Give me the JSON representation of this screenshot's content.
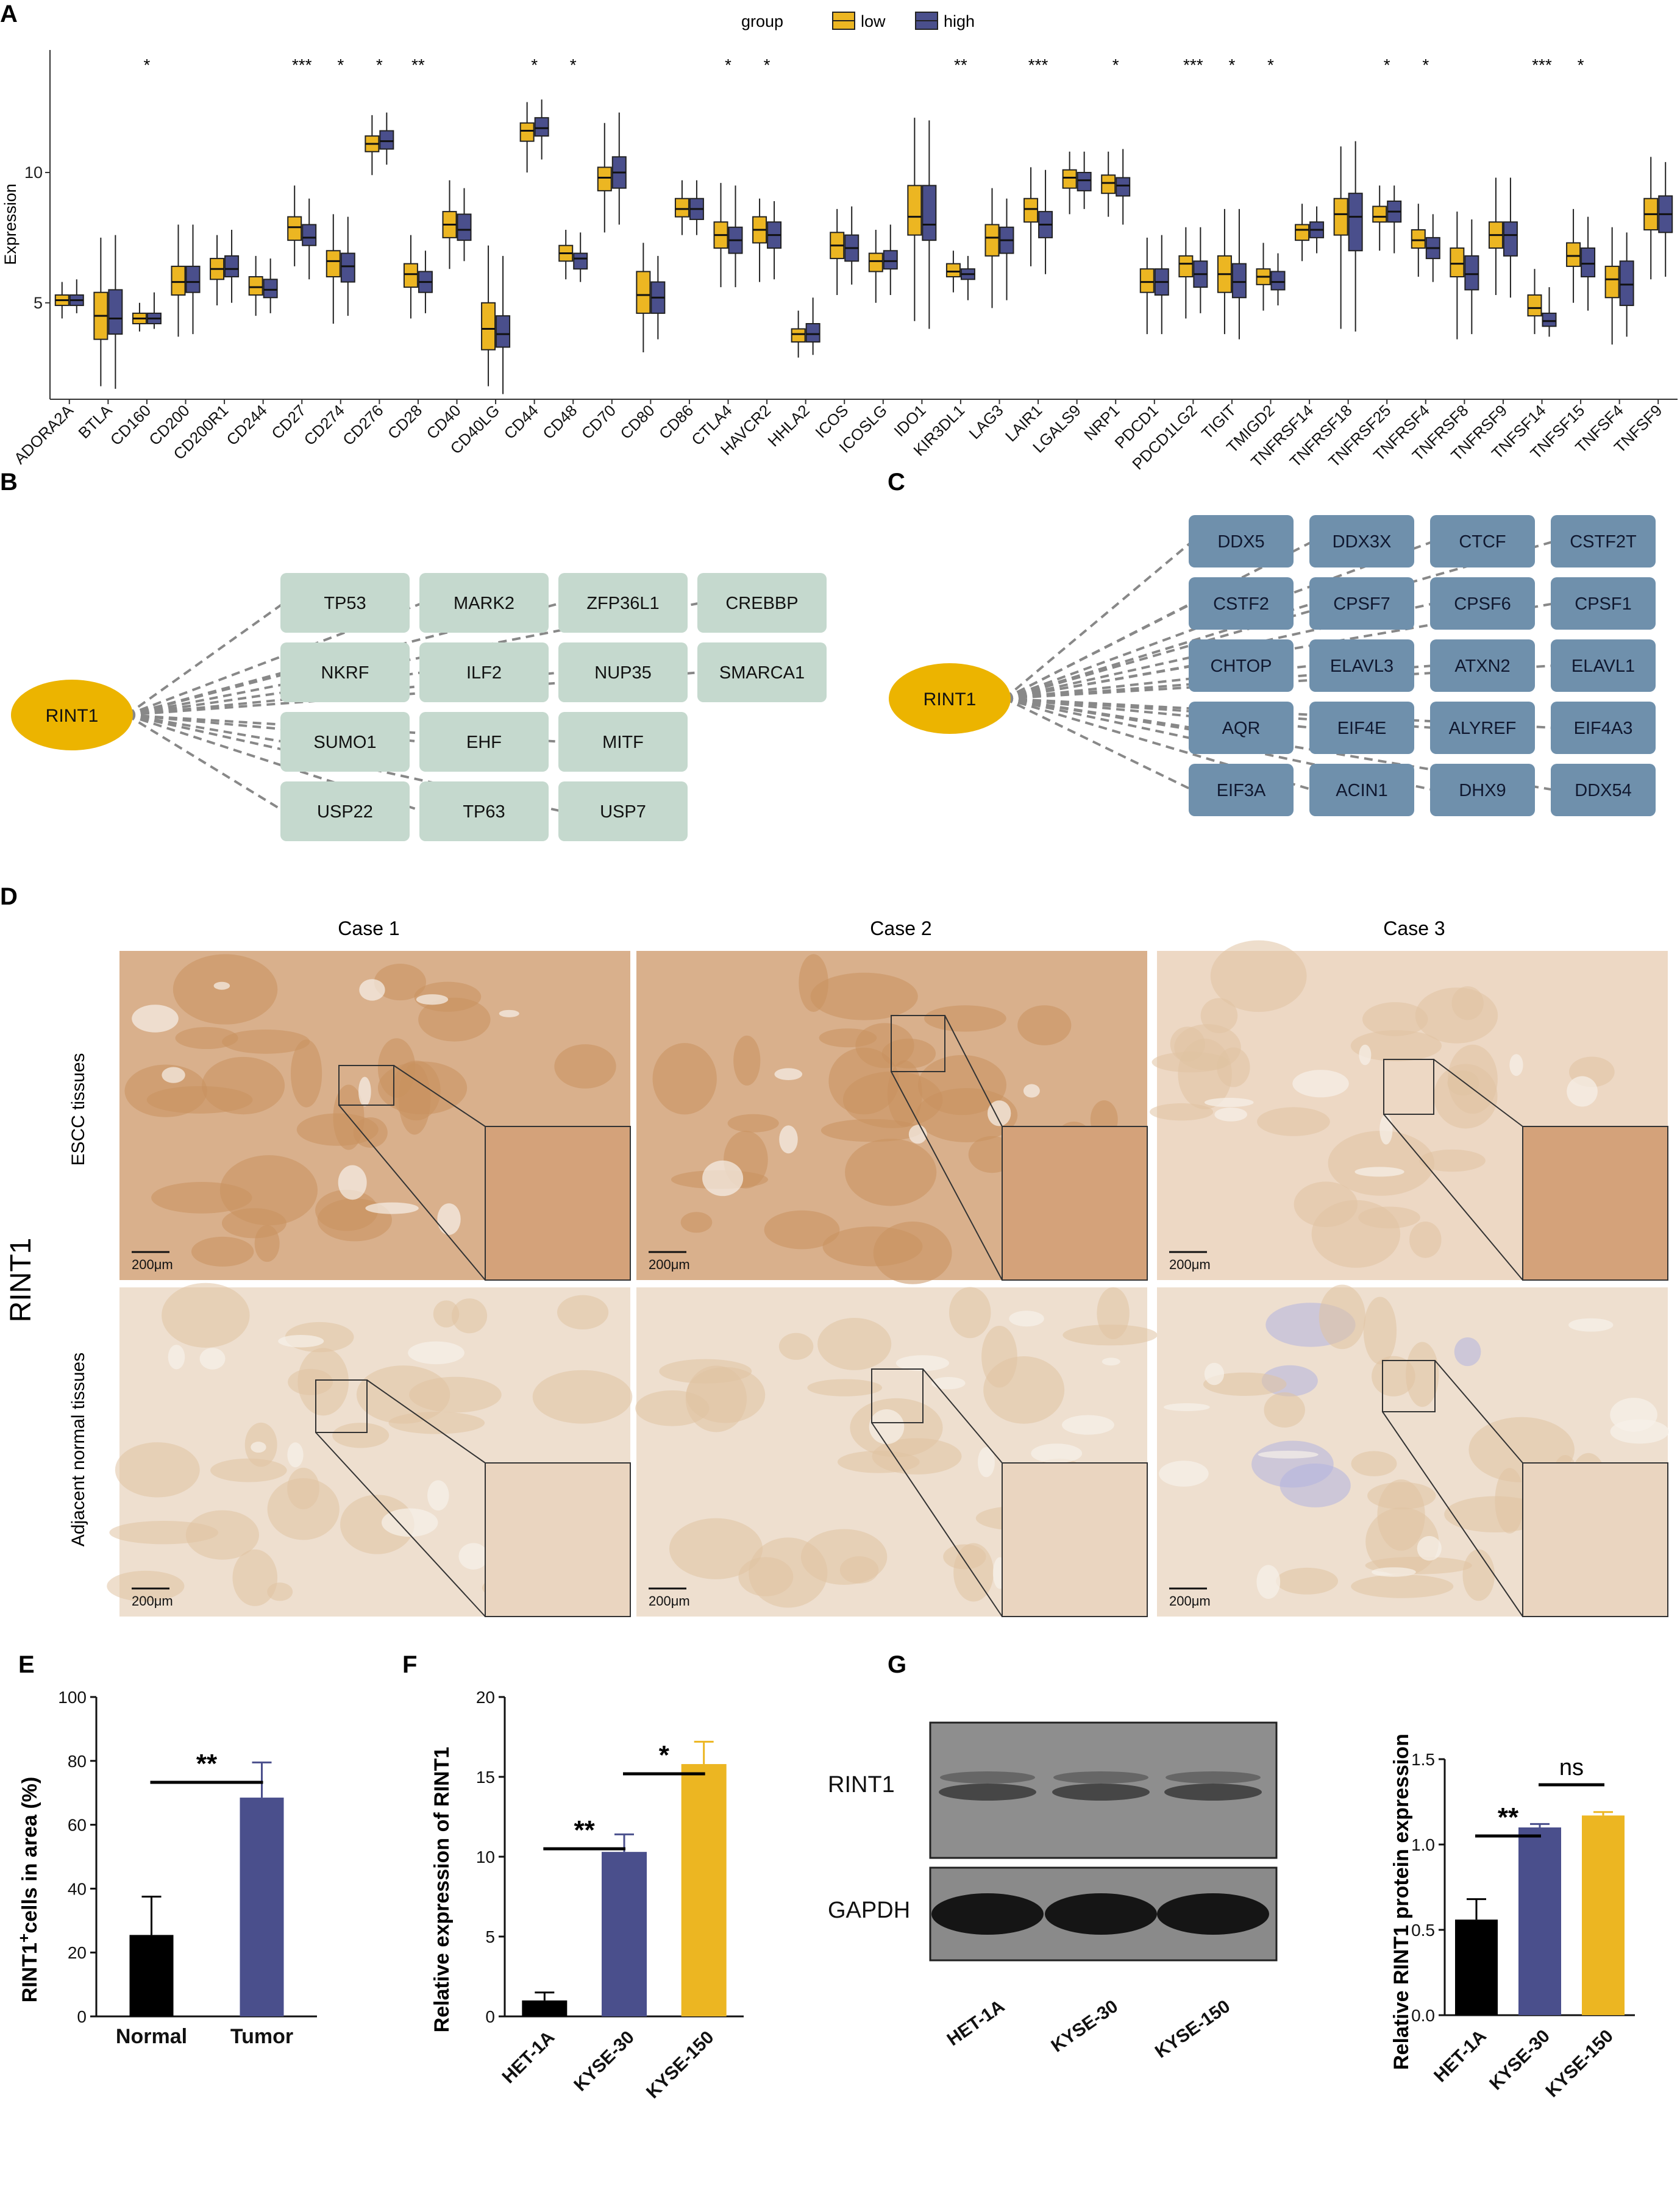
{
  "panels": {
    "a": "A",
    "b": "B",
    "c": "C",
    "d": "D",
    "e": "E",
    "f": "F",
    "g": "G"
  },
  "colors": {
    "low": "#ECB622",
    "high": "#4A4F8C",
    "node_b": "#C5D9CE",
    "node_c": "#6F90AC",
    "rint1_node": "#ECB400",
    "black": "#000000",
    "edge": "#888888",
    "tissue": "#E3C6A8"
  },
  "chart_data": [
    {
      "type": "box",
      "panel": "A",
      "ylabel": "Expression",
      "legend": {
        "title": "group",
        "entries": [
          "low",
          "high"
        ],
        "placement": "top"
      },
      "yticks": [
        5,
        10
      ],
      "ylim": [
        1.3,
        14.7
      ],
      "categories": [
        "ADORA2A",
        "BTLA",
        "CD160",
        "CD200",
        "CD200R1",
        "CD244",
        "CD27",
        "CD274",
        "CD276",
        "CD28",
        "CD40",
        "CD40LG",
        "CD44",
        "CD48",
        "CD70",
        "CD80",
        "CD86",
        "CTLA4",
        "HAVCR2",
        "HHLA2",
        "ICOS",
        "ICOSLG",
        "IDO1",
        "KIR3DL1",
        "LAG3",
        "LAIR1",
        "LGALS9",
        "NRP1",
        "PDCD1",
        "PDCD1LG2",
        "TIGIT",
        "TMIGD2",
        "TNFRSF14",
        "TNFRSF18",
        "TNFRSF25",
        "TNFRSF4",
        "TNFRSF8",
        "TNFRSF9",
        "TNFSF14",
        "TNFSF15",
        "TNFSF4",
        "TNFSF9"
      ],
      "significance": [
        "",
        "",
        "*",
        "",
        "",
        "",
        "***",
        "*",
        "*",
        "**",
        "",
        "",
        "*",
        "*",
        "",
        "",
        "",
        "*",
        "*",
        "",
        "",
        "",
        "",
        "**",
        "",
        "***",
        "",
        "*",
        "",
        "***",
        "*",
        "*",
        "",
        "",
        "*",
        "*",
        "",
        "",
        "***",
        "*",
        "",
        ""
      ],
      "series": [
        {
          "name": "low",
          "boxes": [
            [
              4.4,
              4.9,
              5.1,
              5.3,
              5.8
            ],
            [
              1.8,
              3.6,
              4.5,
              5.4,
              7.5
            ],
            [
              3.9,
              4.2,
              4.4,
              4.6,
              5.0
            ],
            [
              3.7,
              5.3,
              5.8,
              6.4,
              8.0
            ],
            [
              4.9,
              5.9,
              6.3,
              6.7,
              7.6
            ],
            [
              4.5,
              5.3,
              5.6,
              6.0,
              6.8
            ],
            [
              6.4,
              7.4,
              7.9,
              8.3,
              9.5
            ],
            [
              4.2,
              6.0,
              6.6,
              7.0,
              8.4
            ],
            [
              9.9,
              10.8,
              11.1,
              11.4,
              12.2
            ],
            [
              4.4,
              5.6,
              6.1,
              6.5,
              7.6
            ],
            [
              6.3,
              7.5,
              8.0,
              8.5,
              9.7
            ],
            [
              1.8,
              3.2,
              4.0,
              5.0,
              7.2
            ],
            [
              10.0,
              11.2,
              11.6,
              11.9,
              12.7
            ],
            [
              5.9,
              6.6,
              6.9,
              7.2,
              7.8
            ],
            [
              7.7,
              9.3,
              9.8,
              10.2,
              11.9
            ],
            [
              3.1,
              4.6,
              5.3,
              6.2,
              7.3
            ],
            [
              7.6,
              8.3,
              8.6,
              9.0,
              9.7
            ],
            [
              5.6,
              7.1,
              7.6,
              8.1,
              9.6
            ],
            [
              5.8,
              7.3,
              7.8,
              8.3,
              9.0
            ],
            [
              2.9,
              3.5,
              3.8,
              4.0,
              4.7
            ],
            [
              5.3,
              6.7,
              7.2,
              7.7,
              8.6
            ],
            [
              5.0,
              6.2,
              6.6,
              6.9,
              7.8
            ],
            [
              4.3,
              7.6,
              8.3,
              9.5,
              12.1
            ],
            [
              5.4,
              6.0,
              6.2,
              6.5,
              7.0
            ],
            [
              4.8,
              6.8,
              7.5,
              8.0,
              9.4
            ],
            [
              6.4,
              8.1,
              8.6,
              9.0,
              10.2
            ],
            [
              8.4,
              9.4,
              9.8,
              10.1,
              10.8
            ],
            [
              8.3,
              9.2,
              9.6,
              9.9,
              10.8
            ],
            [
              3.8,
              5.4,
              5.8,
              6.3,
              7.5
            ],
            [
              4.4,
              6.0,
              6.5,
              6.8,
              7.9
            ],
            [
              3.8,
              5.4,
              6.1,
              6.8,
              8.6
            ],
            [
              4.7,
              5.7,
              6.0,
              6.3,
              7.3
            ],
            [
              6.6,
              7.4,
              7.8,
              8.0,
              8.8
            ],
            [
              4.0,
              7.6,
              8.4,
              9.0,
              11.0
            ],
            [
              7.0,
              8.1,
              8.3,
              8.7,
              9.5
            ],
            [
              6.0,
              7.1,
              7.4,
              7.8,
              8.8
            ],
            [
              3.6,
              6.0,
              6.5,
              7.1,
              8.5
            ],
            [
              5.3,
              7.1,
              7.6,
              8.1,
              9.8
            ],
            [
              3.8,
              4.5,
              4.8,
              5.3,
              6.3
            ],
            [
              5.0,
              6.4,
              6.8,
              7.3,
              8.6
            ],
            [
              3.4,
              5.2,
              5.9,
              6.4,
              7.9
            ],
            [
              5.9,
              7.8,
              8.4,
              9.0,
              10.6
            ]
          ]
        },
        {
          "name": "high",
          "boxes": [
            [
              4.6,
              4.9,
              5.1,
              5.3,
              5.9
            ],
            [
              1.7,
              3.8,
              4.4,
              5.5,
              7.6
            ],
            [
              4.0,
              4.2,
              4.4,
              4.6,
              5.4
            ],
            [
              3.8,
              5.4,
              5.8,
              6.4,
              8.0
            ],
            [
              5.0,
              6.0,
              6.3,
              6.8,
              7.8
            ],
            [
              4.6,
              5.2,
              5.5,
              5.9,
              6.7
            ],
            [
              5.9,
              7.2,
              7.5,
              8.0,
              9.0
            ],
            [
              4.5,
              5.8,
              6.4,
              6.9,
              8.3
            ],
            [
              10.3,
              10.9,
              11.2,
              11.6,
              12.3
            ],
            [
              4.6,
              5.4,
              5.8,
              6.2,
              7.0
            ],
            [
              6.6,
              7.4,
              7.8,
              8.4,
              9.4
            ],
            [
              1.5,
              3.3,
              3.8,
              4.5,
              6.8
            ],
            [
              10.5,
              11.4,
              11.7,
              12.1,
              12.8
            ],
            [
              5.8,
              6.3,
              6.7,
              6.9,
              7.7
            ],
            [
              8.0,
              9.4,
              10.0,
              10.6,
              12.3
            ],
            [
              3.6,
              4.6,
              5.2,
              5.8,
              6.8
            ],
            [
              7.6,
              8.2,
              8.6,
              9.0,
              9.7
            ],
            [
              5.6,
              6.9,
              7.4,
              7.9,
              9.5
            ],
            [
              5.9,
              7.1,
              7.6,
              8.1,
              8.9
            ],
            [
              3.0,
              3.5,
              3.8,
              4.2,
              5.2
            ],
            [
              5.7,
              6.6,
              7.1,
              7.6,
              8.7
            ],
            [
              5.3,
              6.3,
              6.6,
              7.0,
              8.0
            ],
            [
              4.0,
              7.4,
              8.0,
              9.5,
              12.0
            ],
            [
              5.1,
              5.9,
              6.1,
              6.3,
              6.8
            ],
            [
              5.1,
              6.9,
              7.4,
              7.9,
              9.0
            ],
            [
              6.1,
              7.5,
              8.0,
              8.5,
              10.1
            ],
            [
              8.6,
              9.3,
              9.7,
              10.0,
              10.8
            ],
            [
              8.0,
              9.1,
              9.5,
              9.8,
              10.9
            ],
            [
              3.8,
              5.3,
              5.8,
              6.3,
              7.6
            ],
            [
              4.6,
              5.6,
              6.1,
              6.6,
              7.9
            ],
            [
              3.6,
              5.2,
              5.8,
              6.5,
              8.6
            ],
            [
              4.9,
              5.5,
              5.8,
              6.2,
              6.9
            ],
            [
              6.9,
              7.5,
              7.8,
              8.1,
              8.7
            ],
            [
              3.9,
              7.0,
              8.3,
              9.2,
              11.2
            ],
            [
              6.9,
              8.1,
              8.5,
              8.9,
              9.5
            ],
            [
              5.8,
              6.7,
              7.1,
              7.5,
              8.4
            ],
            [
              3.8,
              5.5,
              6.1,
              6.8,
              8.2
            ],
            [
              5.2,
              6.8,
              7.6,
              8.1,
              9.8
            ],
            [
              3.7,
              4.1,
              4.3,
              4.6,
              5.6
            ],
            [
              4.7,
              6.0,
              6.5,
              7.1,
              8.3
            ],
            [
              3.7,
              4.9,
              5.7,
              6.6,
              7.7
            ],
            [
              6.0,
              7.7,
              8.4,
              9.1,
              10.4
            ]
          ]
        }
      ]
    },
    {
      "type": "bar",
      "panel": "E",
      "ylabel_main": "RINT1",
      "ylabel_sup": "+",
      "ylabel_rest": "cells in area (%)",
      "categories": [
        "Normal",
        "Tumor"
      ],
      "values": [
        25.5,
        68.5
      ],
      "errors": [
        12,
        11
      ],
      "ylim": [
        0,
        100
      ],
      "yticks": [
        0,
        20,
        40,
        60,
        80,
        100
      ],
      "significance": [
        {
          "from": 0,
          "to": 1,
          "label": "**"
        }
      ]
    },
    {
      "type": "bar",
      "panel": "F",
      "ylabel": "Relative expression of RINT1",
      "categories": [
        "HET-1A",
        "KYSE-30",
        "KYSE-150"
      ],
      "values": [
        1.0,
        10.3,
        15.8
      ],
      "errors": [
        0.5,
        1.1,
        1.4
      ],
      "ylim": [
        0,
        20
      ],
      "yticks": [
        0,
        5,
        10,
        15,
        20
      ],
      "significance": [
        {
          "from": 0,
          "to": 1,
          "label": "**"
        },
        {
          "from": 1,
          "to": 2,
          "label": "*"
        }
      ]
    },
    {
      "type": "bar",
      "panel": "G",
      "ylabel": "Relative RINT1 protein expression",
      "categories": [
        "HET-1A",
        "KYSE-30",
        "KYSE-150"
      ],
      "values": [
        0.56,
        1.1,
        1.17
      ],
      "errors": [
        0.12,
        0.02,
        0.02
      ],
      "ylim": [
        0,
        1.5
      ],
      "yticks": [
        "0.0",
        "0.5",
        "1.0",
        "1.5"
      ],
      "significance": [
        {
          "from": 0,
          "to": 1,
          "label": "**"
        },
        {
          "from": 1,
          "to": 2,
          "label": "ns"
        }
      ]
    }
  ],
  "network_b": {
    "center": "RINT1",
    "rows": [
      [
        "TP53",
        "MARK2",
        "ZFP36L1",
        "CREBBP"
      ],
      [
        "NKRF",
        "ILF2",
        "NUP35",
        "SMARCA1"
      ],
      [
        "SUMO1",
        "EHF",
        "MITF"
      ],
      [
        "USP22",
        "TP63",
        "USP7"
      ]
    ]
  },
  "network_c": {
    "center": "RINT1",
    "rows": [
      [
        "DDX5",
        "DDX3X",
        "CTCF",
        "CSTF2T"
      ],
      [
        "CSTF2",
        "CPSF7",
        "CPSF6",
        "CPSF1"
      ],
      [
        "CHTOP",
        "ELAVL3",
        "ATXN2",
        "ELAVL1"
      ],
      [
        "AQR",
        "EIF4E",
        "ALYREF",
        "EIF4A3"
      ],
      [
        "EIF3A",
        "ACIN1",
        "DHX9",
        "DDX54"
      ]
    ]
  },
  "histology": {
    "cases": [
      "Case 1",
      "Case 2",
      "Case 3"
    ],
    "rows": [
      "ESCC tissues",
      "Adjacent normal tissues"
    ],
    "side_label": "RINT1",
    "scale_bar": "200μm"
  },
  "blot": {
    "bands": [
      "RINT1",
      "GAPDH"
    ],
    "lanes": [
      "HET-1A",
      "KYSE-30",
      "KYSE-150"
    ]
  }
}
